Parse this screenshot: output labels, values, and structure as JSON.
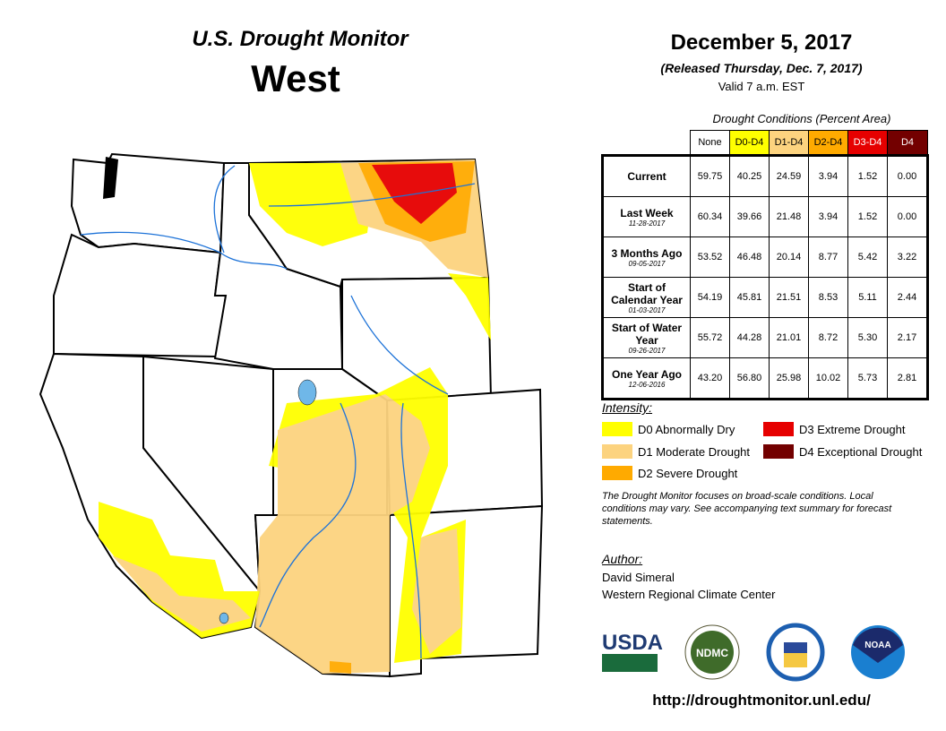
{
  "header": {
    "title": "U.S. Drought Monitor",
    "region": "West",
    "date": "December 5, 2017",
    "released": "(Released Thursday, Dec. 7, 2017)",
    "valid": "Valid 7 a.m. EST"
  },
  "table": {
    "caption": "Drought Conditions (Percent Area)",
    "columns": [
      "None",
      "D0-D4",
      "D1-D4",
      "D2-D4",
      "D3-D4",
      "D4"
    ],
    "column_colors": [
      "#ffffff",
      "#ffff00",
      "#fcd37f",
      "#ffaa00",
      "#e60000",
      "#730000"
    ],
    "rows": [
      {
        "label": "Current",
        "date": "",
        "values": [
          "59.75",
          "40.25",
          "24.59",
          "3.94",
          "1.52",
          "0.00"
        ]
      },
      {
        "label": "Last Week",
        "date": "11-28-2017",
        "values": [
          "60.34",
          "39.66",
          "21.48",
          "3.94",
          "1.52",
          "0.00"
        ]
      },
      {
        "label": "3 Months Ago",
        "date": "09-05-2017",
        "values": [
          "53.52",
          "46.48",
          "20.14",
          "8.77",
          "5.42",
          "3.22"
        ]
      },
      {
        "label": "Start of Calendar Year",
        "date": "01-03-2017",
        "values": [
          "54.19",
          "45.81",
          "21.51",
          "8.53",
          "5.11",
          "2.44"
        ]
      },
      {
        "label": "Start of Water Year",
        "date": "09-26-2017",
        "values": [
          "55.72",
          "44.28",
          "21.01",
          "8.72",
          "5.30",
          "2.17"
        ]
      },
      {
        "label": "One Year Ago",
        "date": "12-06-2016",
        "values": [
          "43.20",
          "56.80",
          "25.98",
          "10.02",
          "5.73",
          "2.81"
        ]
      }
    ]
  },
  "legend": {
    "title": "Intensity:",
    "items": [
      {
        "label": "D0 Abnormally Dry",
        "color": "#ffff00"
      },
      {
        "label": "D1 Moderate Drought",
        "color": "#fcd37f"
      },
      {
        "label": "D2 Severe Drought",
        "color": "#ffaa00"
      },
      {
        "label": "D3 Extreme Drought",
        "color": "#e60000"
      },
      {
        "label": "D4 Exceptional Drought",
        "color": "#730000"
      }
    ]
  },
  "note": "The Drought Monitor focuses on broad-scale conditions. Local conditions may vary. See accompanying text summary for forecast statements.",
  "author": {
    "title": "Author:",
    "name": "David Simeral",
    "org": "Western Regional Climate Center"
  },
  "logos": [
    "USDA",
    "NDMC",
    "Department of Commerce",
    "NOAA"
  ],
  "url": "http://droughtmonitor.unl.edu/"
}
